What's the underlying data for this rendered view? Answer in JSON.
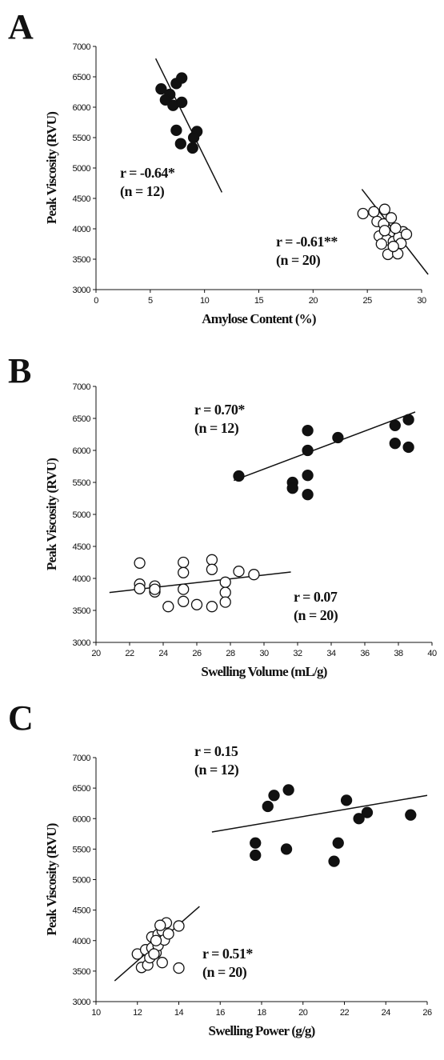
{
  "chart_data": [
    {
      "type": "scatter",
      "panel": "A",
      "xlabel": "Amylose Content (%)",
      "ylabel": "Peak Viscosity (RVU)",
      "xlim": [
        0,
        30
      ],
      "xticks": [
        0,
        5,
        10,
        15,
        20,
        25,
        30
      ],
      "ylim": [
        3000,
        7000
      ],
      "yticks": [
        3000,
        3500,
        4000,
        4500,
        5000,
        5500,
        6000,
        6500,
        7000
      ],
      "series": [
        {
          "marker": "filled",
          "color": "#111111",
          "annotation": [
            "r = -0.64*",
            "(n = 12)"
          ],
          "x": [
            6.0,
            7.4,
            7.9,
            6.8,
            6.4,
            7.1,
            7.9,
            7.4,
            9.3,
            9.0,
            7.8,
            8.9
          ],
          "values": [
            6300,
            6390,
            6480,
            6210,
            6120,
            6030,
            6080,
            5620,
            5600,
            5500,
            5400,
            5330
          ],
          "trend": {
            "x": [
              5.5,
              11.6
            ],
            "y": [
              6800,
              4600
            ]
          }
        },
        {
          "marker": "open",
          "color": "#111111",
          "annotation": [
            "r = -0.61**",
            "(n = 20)"
          ],
          "x": [
            24.6,
            25.6,
            26.6,
            25.9,
            26.5,
            27.2,
            28.3,
            26.1,
            27.0,
            26.8,
            27.4,
            27.9,
            28.1,
            28.6,
            26.9,
            27.8,
            27.4,
            26.6,
            27.6,
            26.3
          ],
          "values": [
            4250,
            4280,
            4320,
            4120,
            4080,
            4180,
            3950,
            3880,
            3910,
            3820,
            3790,
            3860,
            3760,
            3910,
            3580,
            3590,
            3710,
            3970,
            4010,
            3750
          ],
          "trend": {
            "x": [
              24.5,
              30.6
            ],
            "y": [
              4650,
              3250
            ]
          }
        }
      ]
    },
    {
      "type": "scatter",
      "panel": "B",
      "xlabel": "Swelling Volume (mL/g)",
      "ylabel": "Peak Viscosity (RVU)",
      "xlim": [
        20,
        40
      ],
      "xticks": [
        20,
        22,
        24,
        26,
        28,
        30,
        32,
        34,
        36,
        38,
        40
      ],
      "ylim": [
        3000,
        7000
      ],
      "yticks": [
        3000,
        3500,
        4000,
        4500,
        5000,
        5500,
        6000,
        6500,
        7000
      ],
      "series": [
        {
          "marker": "filled",
          "color": "#111111",
          "annotation": [
            "r = 0.70*",
            "(n = 12)"
          ],
          "x": [
            28.5,
            32.6,
            32.6,
            32.6,
            31.7,
            31.7,
            32.6,
            34.4,
            37.8,
            37.8,
            38.6,
            38.6
          ],
          "values": [
            5600,
            6310,
            6000,
            5610,
            5500,
            5410,
            5310,
            6200,
            6390,
            6110,
            6480,
            6050
          ],
          "trend": {
            "x": [
              28.2,
              39
            ],
            "y": [
              5530,
              6600
            ]
          }
        },
        {
          "marker": "open",
          "color": "#111111",
          "annotation": [
            "r = 0.07",
            "(n = 20)"
          ],
          "x": [
            22.6,
            22.6,
            22.6,
            23.5,
            23.5,
            24.3,
            25.2,
            25.2,
            25.2,
            25.2,
            26.0,
            26.9,
            26.9,
            26.9,
            27.7,
            27.7,
            27.7,
            28.5,
            29.4,
            23.5
          ],
          "values": [
            4240,
            3910,
            3840,
            3880,
            3790,
            3560,
            4250,
            4090,
            3830,
            3640,
            3590,
            4290,
            4140,
            3560,
            3940,
            3780,
            3630,
            4110,
            4060,
            3830
          ],
          "trend": {
            "x": [
              20.8,
              31.6
            ],
            "y": [
              3780,
              4100
            ]
          }
        }
      ]
    },
    {
      "type": "scatter",
      "panel": "C",
      "xlabel": "Swelling Power (g/g)",
      "ylabel": "Peak Viscosity (RVU)",
      "xlim": [
        10,
        26
      ],
      "xticks": [
        10,
        12,
        14,
        16,
        18,
        20,
        22,
        24,
        26
      ],
      "ylim": [
        3000,
        7000
      ],
      "yticks": [
        3000,
        3500,
        4000,
        4500,
        5000,
        5500,
        6000,
        6500,
        7000
      ],
      "series": [
        {
          "marker": "filled",
          "color": "#111111",
          "annotation": [
            "r = 0.15",
            "(n = 12)"
          ],
          "x": [
            17.7,
            17.7,
            18.3,
            18.6,
            19.3,
            19.2,
            21.5,
            21.7,
            22.1,
            22.7,
            23.1,
            25.2
          ],
          "values": [
            5600,
            5400,
            6200,
            6380,
            6470,
            5500,
            5300,
            5600,
            6300,
            6000,
            6100,
            6060
          ],
          "trend": {
            "x": [
              15.6,
              26
            ],
            "y": [
              5780,
              6380
            ]
          }
        },
        {
          "marker": "open",
          "color": "#111111",
          "annotation": [
            "r = 0.51*",
            "(n = 20)"
          ],
          "x": [
            12.0,
            12.2,
            12.5,
            12.4,
            12.7,
            12.7,
            12.9,
            13.0,
            13.0,
            13.2,
            13.2,
            13.3,
            13.4,
            13.5,
            14.0,
            14.0,
            12.6,
            12.9,
            12.8,
            13.1
          ],
          "values": [
            3780,
            3560,
            3600,
            3850,
            3880,
            4060,
            3800,
            4100,
            3920,
            4160,
            3640,
            4010,
            4290,
            4110,
            4240,
            3550,
            3720,
            4000,
            3780,
            4250
          ],
          "trend": {
            "x": [
              10.9,
              15
            ],
            "y": [
              3340,
              4560
            ]
          }
        }
      ]
    }
  ]
}
